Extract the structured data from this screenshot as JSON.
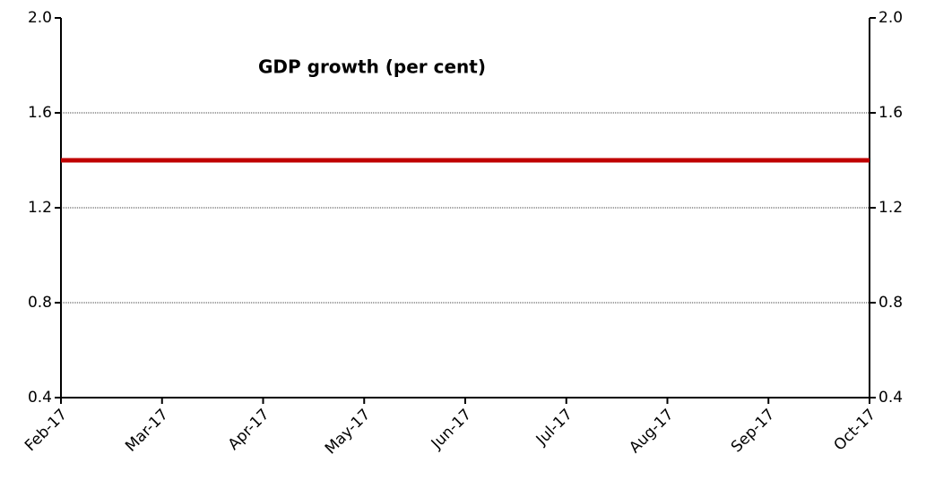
{
  "chart_data": {
    "type": "line",
    "title": "GDP growth (per cent)",
    "categories": [
      "Feb-17",
      "Mar-17",
      "Apr-17",
      "May-17",
      "Jun-17",
      "Jul-17",
      "Aug-17",
      "Sep-17",
      "Oct-17"
    ],
    "series": [
      {
        "name": "GDP growth",
        "color": "#c00000",
        "values": [
          1.4,
          1.4,
          1.4,
          1.4,
          1.4,
          1.4,
          1.4,
          1.4,
          1.4
        ]
      }
    ],
    "ylim": [
      0.4,
      2.0
    ],
    "yticks": [
      0.4,
      0.8,
      1.2,
      1.6,
      {
        "value": 2.0,
        "label": "2.0"
      }
    ],
    "y2lim": [
      0.4,
      2.0
    ],
    "y2ticks": [
      0.4,
      0.8,
      1.2,
      1.6,
      {
        "value": 2.0,
        "label": "2.0"
      }
    ],
    "grid": true
  }
}
